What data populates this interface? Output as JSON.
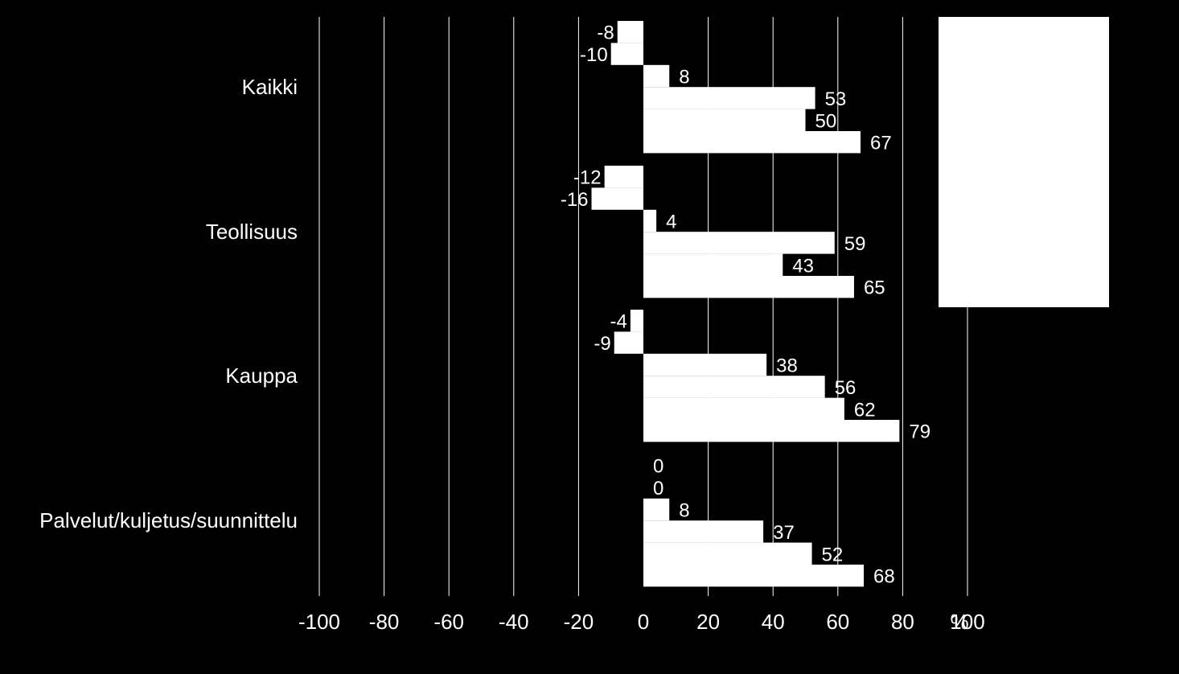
{
  "chart_data": {
    "type": "bar",
    "orientation": "horizontal",
    "categories": [
      "Kaikki",
      "Teollisuus",
      "Kauppa",
      "Palvelut/kuljetus/suunnittelu"
    ],
    "series": [
      {
        "values": [
          -8,
          -12,
          -4,
          0
        ]
      },
      {
        "values": [
          -10,
          -16,
          -9,
          0
        ]
      },
      {
        "values": [
          8,
          4,
          38,
          8
        ]
      },
      {
        "values": [
          53,
          59,
          56,
          37
        ]
      },
      {
        "values": [
          50,
          43,
          62,
          52
        ]
      },
      {
        "values": [
          67,
          65,
          79,
          68
        ]
      }
    ],
    "xlim": [
      -100,
      100
    ],
    "xticks": [
      -100,
      -80,
      -60,
      -40,
      -20,
      0,
      20,
      40,
      60,
      80,
      100
    ],
    "xunit": "%",
    "grid": true,
    "legend": "right",
    "colors": {
      "background": "#000000",
      "bars": "#ffffff",
      "grid": "#ffffff",
      "legend_box": "#ffffff"
    }
  }
}
